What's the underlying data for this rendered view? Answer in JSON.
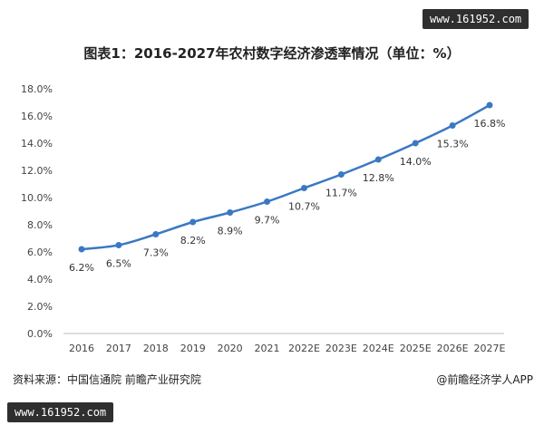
{
  "watermarks": {
    "top": "www.161952.com",
    "bottom": "www.161952.com"
  },
  "footer": {
    "source": "资料来源：中国信通院 前瞻产业研究院",
    "brand": "@前瞻经济学人APP"
  },
  "colors": {
    "line": "#3a78c2",
    "point": "#3a78c2",
    "grid": "#dddddd",
    "axis": "#bbbbbb"
  },
  "chart_data": {
    "type": "line",
    "title": "图表1：2016-2027年农村数字经济渗透率情况（单位：%）",
    "xlabel": "",
    "ylabel": "",
    "ylim": [
      0,
      18
    ],
    "ytick_labels": [
      "0.0%",
      "2.0%",
      "4.0%",
      "6.0%",
      "8.0%",
      "10.0%",
      "12.0%",
      "14.0%",
      "16.0%",
      "18.0%"
    ],
    "grid": false,
    "categories": [
      "2016",
      "2017",
      "2018",
      "2019",
      "2020",
      "2021",
      "2022E",
      "2023E",
      "2024E",
      "2025E",
      "2026E",
      "2027E"
    ],
    "values": [
      6.2,
      6.5,
      7.3,
      8.2,
      8.9,
      9.7,
      10.7,
      11.7,
      12.8,
      14.0,
      15.3,
      16.8
    ],
    "data_labels": [
      "6.2%",
      "6.5%",
      "7.3%",
      "8.2%",
      "8.9%",
      "9.7%",
      "10.7%",
      "11.7%",
      "12.8%",
      "14.0%",
      "15.3%",
      "16.8%"
    ]
  }
}
